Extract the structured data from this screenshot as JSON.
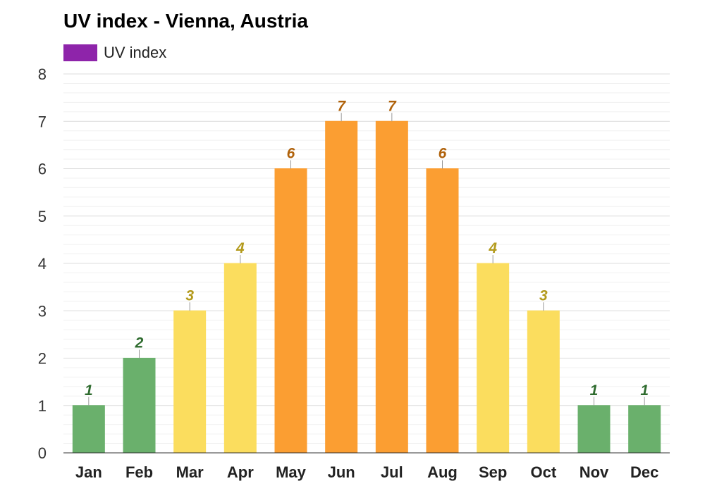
{
  "chart_data": {
    "type": "bar",
    "title": "UV index - Vienna, Austria",
    "legend": {
      "label": "UV index",
      "color": "#8e24aa",
      "placement": "top-left"
    },
    "categories": [
      "Jan",
      "Feb",
      "Mar",
      "Apr",
      "May",
      "Jun",
      "Jul",
      "Aug",
      "Sep",
      "Oct",
      "Nov",
      "Dec"
    ],
    "series": [
      {
        "name": "UV index",
        "values": [
          1,
          2,
          3,
          4,
          6,
          7,
          7,
          6,
          4,
          3,
          1,
          1
        ]
      }
    ],
    "ylim": [
      0,
      8
    ],
    "yticks": [
      "0",
      "1",
      "2",
      "3",
      "4",
      "5",
      "6",
      "7",
      "8"
    ],
    "grid": true,
    "colors": {
      "low": {
        "bar": "#6ab06c",
        "label": "#2e6b2e"
      },
      "moderate": {
        "bar": "#fbdd5e",
        "label": "#b39a1c"
      },
      "high": {
        "bar": "#fb9e32",
        "label": "#b0620b"
      }
    }
  }
}
